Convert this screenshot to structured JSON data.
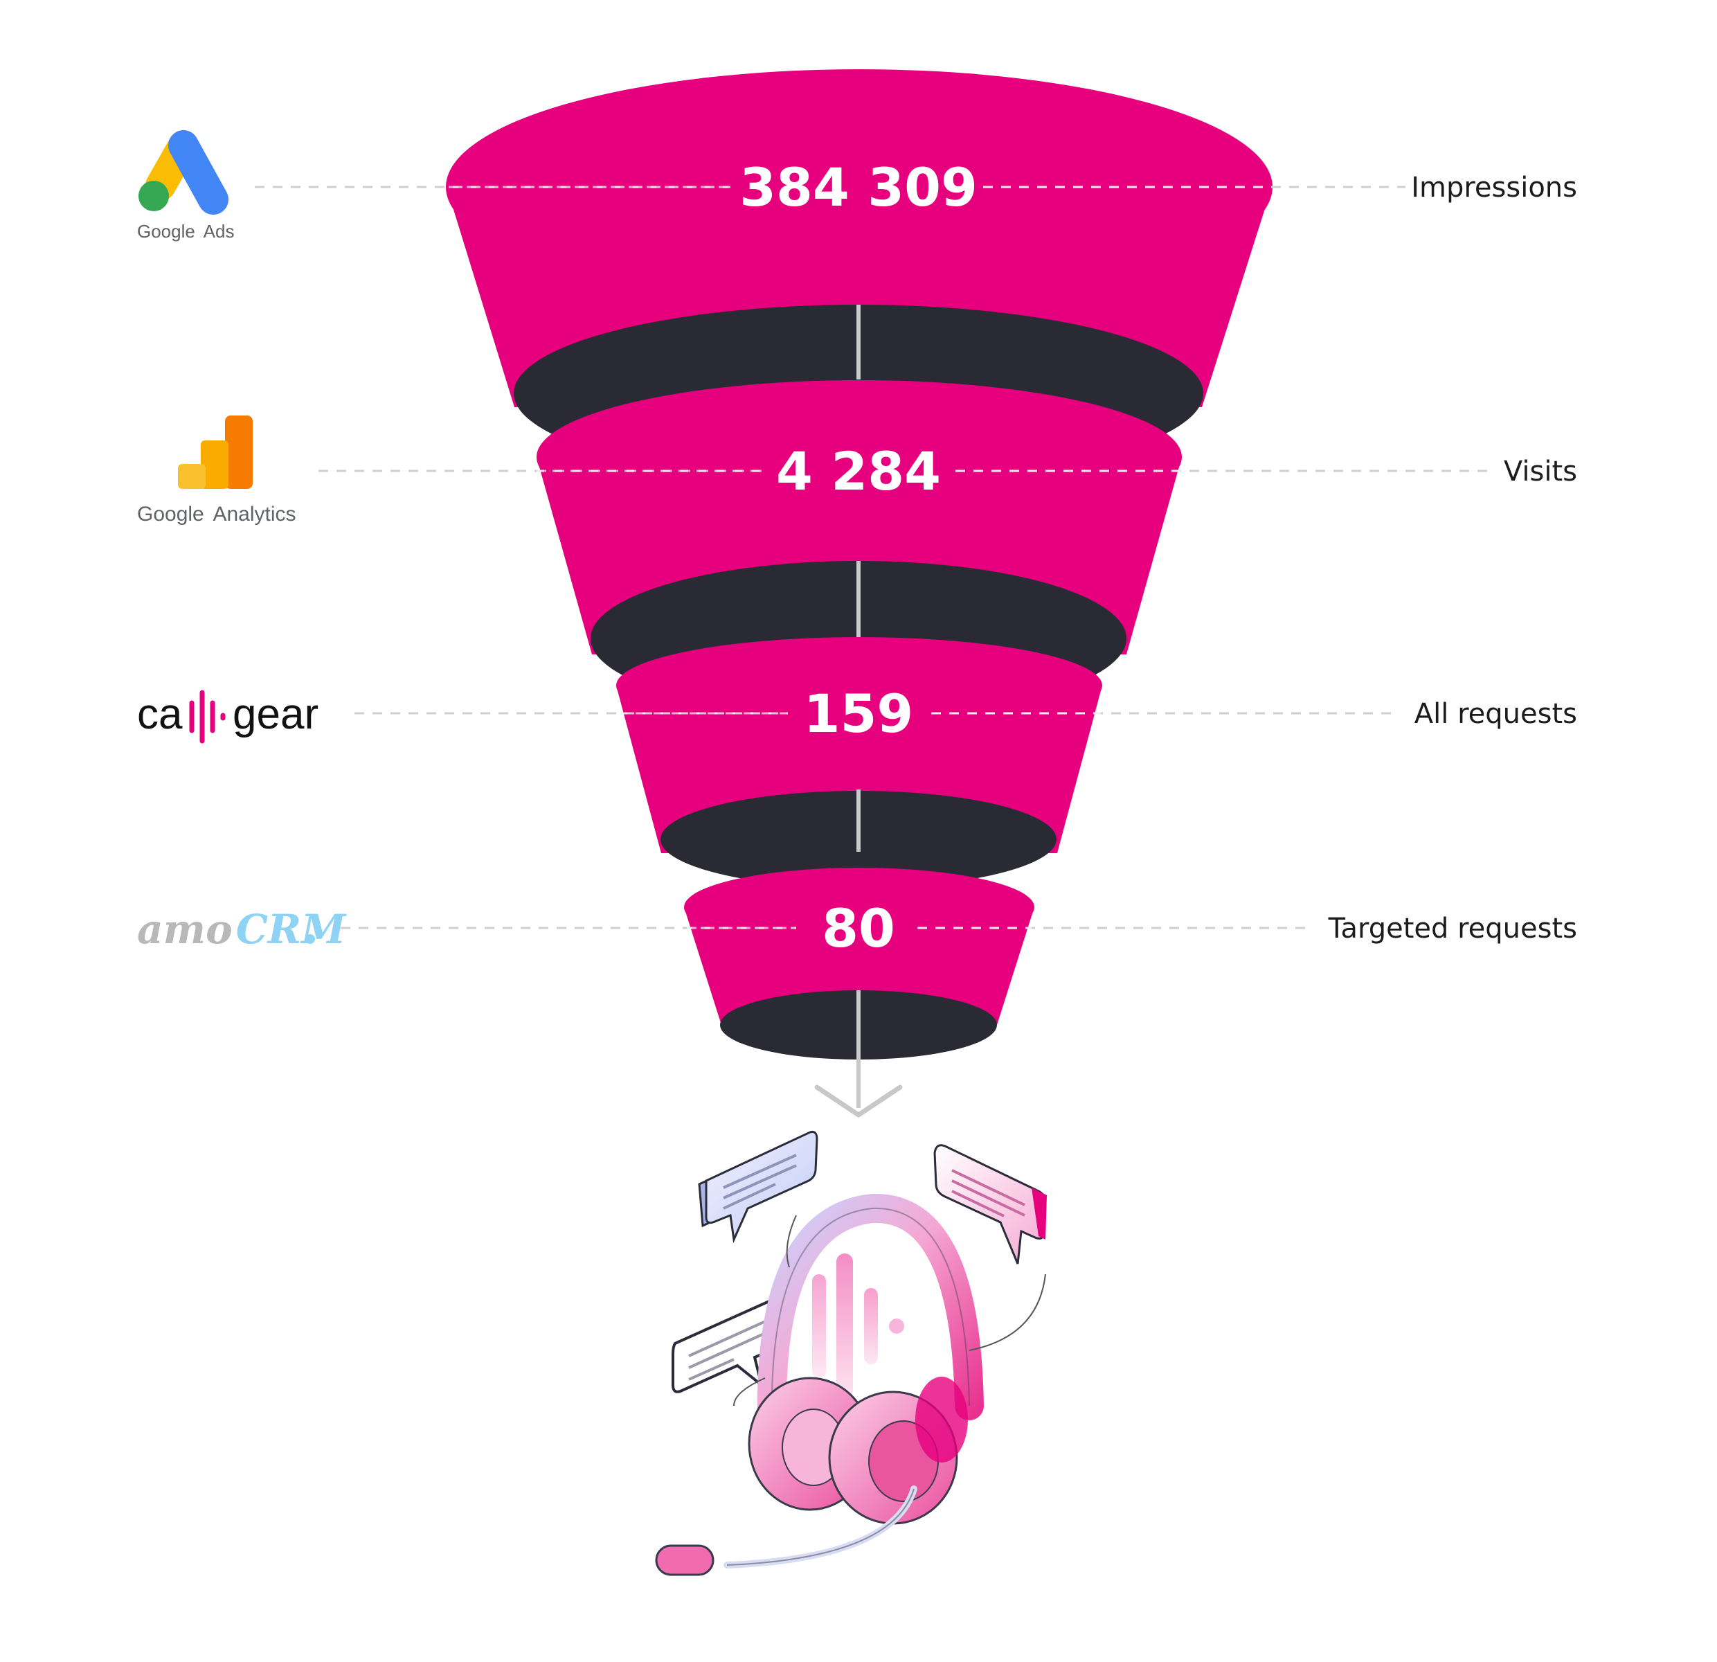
{
  "funnel": {
    "stages": [
      {
        "value": "384 309",
        "label": "Impressions",
        "source": "Google Ads"
      },
      {
        "value": "4 284",
        "label": "Visits",
        "source": "Google Analytics"
      },
      {
        "value": "159",
        "label": "All requests",
        "source": "callgear"
      },
      {
        "value": "80",
        "label": "Targeted requests",
        "source": "amoCRM"
      }
    ]
  },
  "logos": {
    "google_ads": {
      "word1": "Google",
      "word2": "Ads"
    },
    "google_analytics": {
      "word1": "Google",
      "word2": "Analytics"
    },
    "callgear": {
      "part1": "ca",
      "part2": "gear"
    },
    "amocrm": {
      "part1": "amo",
      "part2": "CRM"
    }
  },
  "illustration": {
    "icon": "headset-with-chat-bubbles-icon"
  },
  "colors": {
    "funnel_fill": "#E6007E",
    "funnel_inner": "#292A33",
    "guide_line": "#cccccc",
    "arrow": "#c8c8c8"
  }
}
